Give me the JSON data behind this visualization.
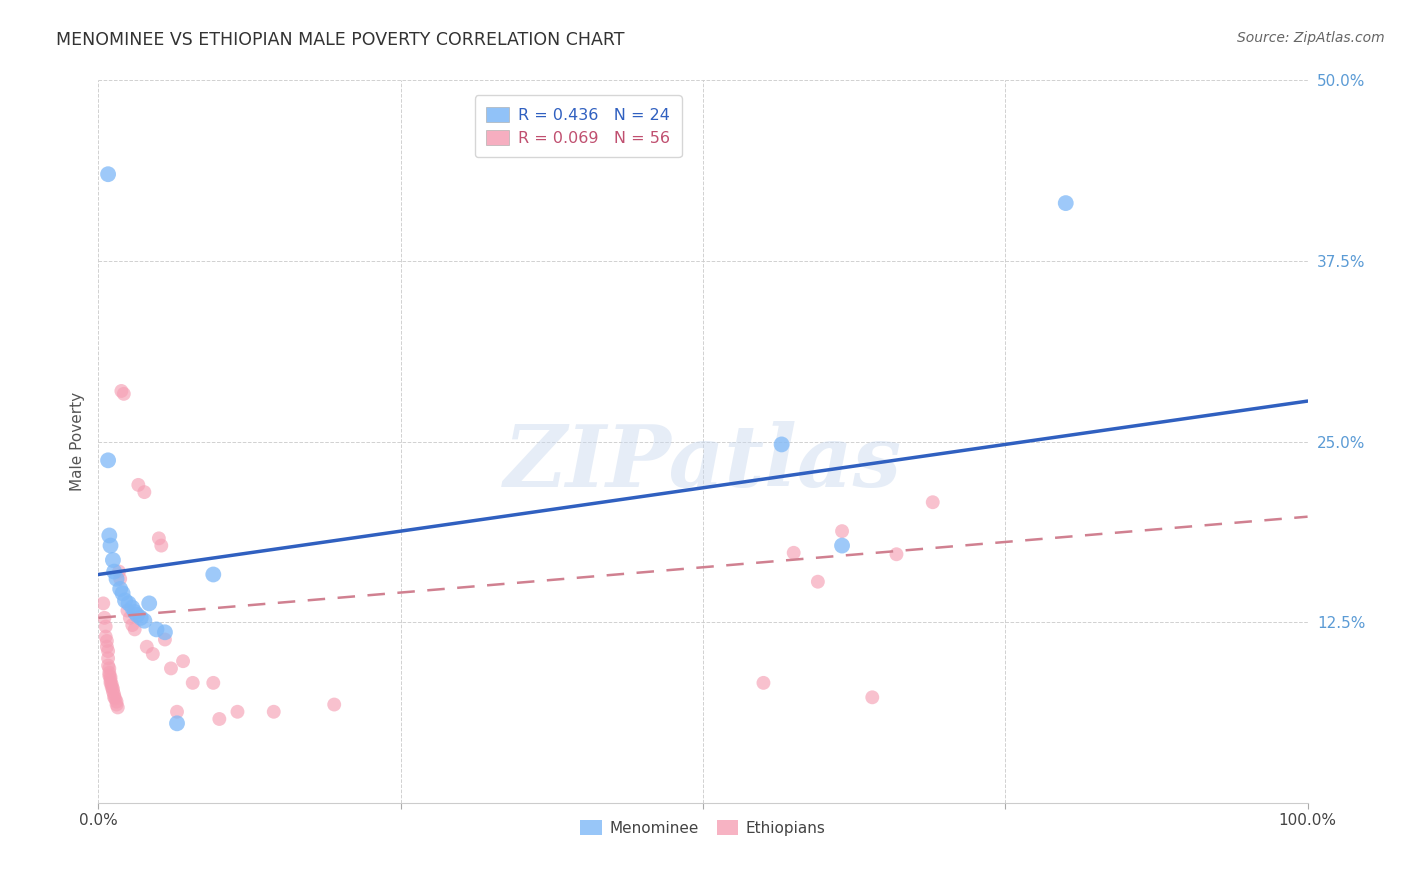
{
  "title": "MENOMINEE VS ETHIOPIAN MALE POVERTY CORRELATION CHART",
  "source": "Source: ZipAtlas.com",
  "xlabel": "",
  "ylabel": "Male Poverty",
  "xlim": [
    0.0,
    1.0
  ],
  "ylim": [
    0.0,
    0.5
  ],
  "xticks": [
    0.0,
    0.25,
    0.5,
    0.75,
    1.0
  ],
  "xticklabels": [
    "0.0%",
    "",
    "",
    "",
    "100.0%"
  ],
  "yticks": [
    0.125,
    0.25,
    0.375,
    0.5
  ],
  "yticklabels": [
    "12.5%",
    "25.0%",
    "37.5%",
    "50.0%"
  ],
  "menominee_R": 0.436,
  "menominee_N": 24,
  "ethiopian_R": 0.069,
  "ethiopian_N": 56,
  "menominee_color": "#7EB8F7",
  "ethiopian_color": "#F5A0B5",
  "trendline_menominee_color": "#3060C0",
  "trendline_ethiopian_color": "#D08090",
  "background_color": "#ffffff",
  "watermark_text": "ZIPatlas",
  "menominee_points": [
    [
      0.008,
      0.435
    ],
    [
      0.008,
      0.237
    ],
    [
      0.009,
      0.185
    ],
    [
      0.01,
      0.178
    ],
    [
      0.012,
      0.168
    ],
    [
      0.013,
      0.16
    ],
    [
      0.015,
      0.155
    ],
    [
      0.018,
      0.148
    ],
    [
      0.02,
      0.145
    ],
    [
      0.022,
      0.14
    ],
    [
      0.025,
      0.138
    ],
    [
      0.028,
      0.135
    ],
    [
      0.03,
      0.132
    ],
    [
      0.032,
      0.13
    ],
    [
      0.035,
      0.128
    ],
    [
      0.038,
      0.126
    ],
    [
      0.042,
      0.138
    ],
    [
      0.048,
      0.12
    ],
    [
      0.055,
      0.118
    ],
    [
      0.065,
      0.055
    ],
    [
      0.095,
      0.158
    ],
    [
      0.565,
      0.248
    ],
    [
      0.615,
      0.178
    ],
    [
      0.8,
      0.415
    ]
  ],
  "ethiopian_points": [
    [
      0.004,
      0.138
    ],
    [
      0.005,
      0.128
    ],
    [
      0.006,
      0.122
    ],
    [
      0.006,
      0.115
    ],
    [
      0.007,
      0.112
    ],
    [
      0.007,
      0.108
    ],
    [
      0.008,
      0.105
    ],
    [
      0.008,
      0.1
    ],
    [
      0.008,
      0.095
    ],
    [
      0.009,
      0.093
    ],
    [
      0.009,
      0.09
    ],
    [
      0.009,
      0.088
    ],
    [
      0.01,
      0.087
    ],
    [
      0.01,
      0.085
    ],
    [
      0.01,
      0.083
    ],
    [
      0.011,
      0.082
    ],
    [
      0.011,
      0.08
    ],
    [
      0.012,
      0.079
    ],
    [
      0.012,
      0.077
    ],
    [
      0.013,
      0.075
    ],
    [
      0.013,
      0.073
    ],
    [
      0.014,
      0.072
    ],
    [
      0.015,
      0.07
    ],
    [
      0.015,
      0.068
    ],
    [
      0.016,
      0.066
    ],
    [
      0.017,
      0.16
    ],
    [
      0.018,
      0.155
    ],
    [
      0.019,
      0.285
    ],
    [
      0.021,
      0.283
    ],
    [
      0.024,
      0.133
    ],
    [
      0.026,
      0.128
    ],
    [
      0.028,
      0.123
    ],
    [
      0.03,
      0.12
    ],
    [
      0.033,
      0.22
    ],
    [
      0.038,
      0.215
    ],
    [
      0.04,
      0.108
    ],
    [
      0.045,
      0.103
    ],
    [
      0.05,
      0.183
    ],
    [
      0.052,
      0.178
    ],
    [
      0.055,
      0.113
    ],
    [
      0.06,
      0.093
    ],
    [
      0.065,
      0.063
    ],
    [
      0.07,
      0.098
    ],
    [
      0.078,
      0.083
    ],
    [
      0.095,
      0.083
    ],
    [
      0.1,
      0.058
    ],
    [
      0.115,
      0.063
    ],
    [
      0.145,
      0.063
    ],
    [
      0.195,
      0.068
    ],
    [
      0.55,
      0.083
    ],
    [
      0.575,
      0.173
    ],
    [
      0.595,
      0.153
    ],
    [
      0.615,
      0.188
    ],
    [
      0.64,
      0.073
    ],
    [
      0.66,
      0.172
    ],
    [
      0.69,
      0.208
    ]
  ],
  "menominee_trendline": [
    [
      0.0,
      0.158
    ],
    [
      1.0,
      0.278
    ]
  ],
  "ethiopian_trendline": [
    [
      0.0,
      0.128
    ],
    [
      1.0,
      0.198
    ]
  ]
}
